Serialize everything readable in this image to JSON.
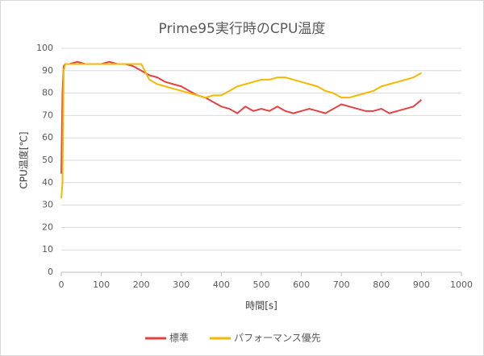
{
  "chart_data": {
    "type": "line",
    "title": "Prime95実行時のCPU温度",
    "x_label": "時間[s]",
    "y_label": "CPU温度[℃]",
    "x": [
      0,
      3,
      6,
      10,
      20,
      40,
      60,
      80,
      100,
      120,
      140,
      160,
      180,
      200,
      220,
      240,
      260,
      280,
      300,
      320,
      340,
      360,
      380,
      400,
      420,
      440,
      460,
      480,
      500,
      520,
      540,
      560,
      580,
      600,
      620,
      640,
      660,
      680,
      700,
      720,
      740,
      760,
      780,
      800,
      820,
      840,
      860,
      880,
      900
    ],
    "series": [
      {
        "name": "標準",
        "color": "#e84040",
        "values": [
          44,
          80,
          92,
          93,
          93,
          94,
          93,
          93,
          93,
          94,
          93,
          93,
          92,
          90,
          88,
          87,
          85,
          84,
          83,
          81,
          79,
          78,
          76,
          74,
          73,
          71,
          74,
          72,
          73,
          72,
          74,
          72,
          71,
          72,
          73,
          72,
          71,
          73,
          75,
          74,
          73,
          72,
          72,
          73,
          71,
          72,
          73,
          74,
          77
        ]
      },
      {
        "name": "パフォーマンス優先",
        "color": "#f5b800",
        "values": [
          33,
          40,
          90,
          93,
          93,
          93,
          93,
          93,
          93,
          93,
          93,
          93,
          93,
          93,
          86,
          84,
          83,
          82,
          81,
          80,
          79,
          78,
          79,
          79,
          81,
          83,
          84,
          85,
          86,
          86,
          87,
          87,
          86,
          85,
          84,
          83,
          81,
          80,
          78,
          78,
          79,
          80,
          81,
          83,
          84,
          85,
          86,
          87,
          89
        ]
      }
    ],
    "xlim": [
      0,
      1000
    ],
    "xticks": [
      0,
      100,
      200,
      300,
      400,
      500,
      600,
      700,
      800,
      900,
      1000
    ],
    "ylim": [
      0,
      100
    ],
    "yticks": [
      0,
      10,
      20,
      30,
      40,
      50,
      60,
      70,
      80,
      90,
      100
    ],
    "grid": true,
    "legend": "bottom"
  }
}
